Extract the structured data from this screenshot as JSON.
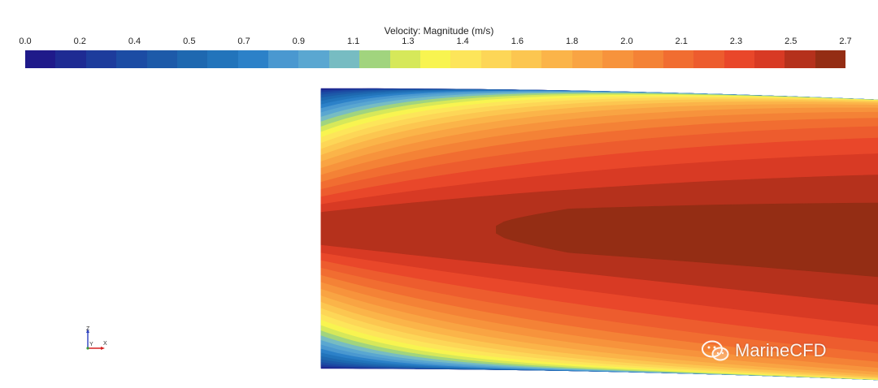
{
  "chart_data": {
    "type": "heatmap",
    "title": "Velocity: Magnitude (m/s)",
    "colorbar": {
      "ticks": [
        "0.0",
        "0.2",
        "0.4",
        "0.5",
        "0.7",
        "0.9",
        "1.1",
        "1.3",
        "1.4",
        "1.6",
        "1.8",
        "2.0",
        "2.1",
        "2.3",
        "2.5",
        "2.7"
      ],
      "range": [
        0.0,
        2.7
      ],
      "colors": [
        "#1f1a8a",
        "#1e2b93",
        "#1d3c9c",
        "#1c4ca4",
        "#1d5aa9",
        "#1e68b0",
        "#2274bb",
        "#2c81c8",
        "#4a98d0",
        "#5aa7d1",
        "#77bcc2",
        "#a1d47e",
        "#d6e85a",
        "#f8f450",
        "#fde55a",
        "#fdd657",
        "#fcc650",
        "#fbb449",
        "#f9a443",
        "#f7933c",
        "#f48236",
        "#f16d31",
        "#ed5c2e",
        "#e9472a",
        "#d83a24",
        "#b5311c",
        "#942d14"
      ]
    },
    "field": {
      "variable": "Velocity magnitude",
      "unit": "m/s",
      "core_max": 2.7,
      "wall_min": 0.0
    },
    "axes_triad": {
      "labels": [
        "Z",
        "Y",
        "X"
      ]
    },
    "watermark": {
      "text": "MarineCFD"
    },
    "colors": {
      "background": "#ffffff"
    }
  }
}
